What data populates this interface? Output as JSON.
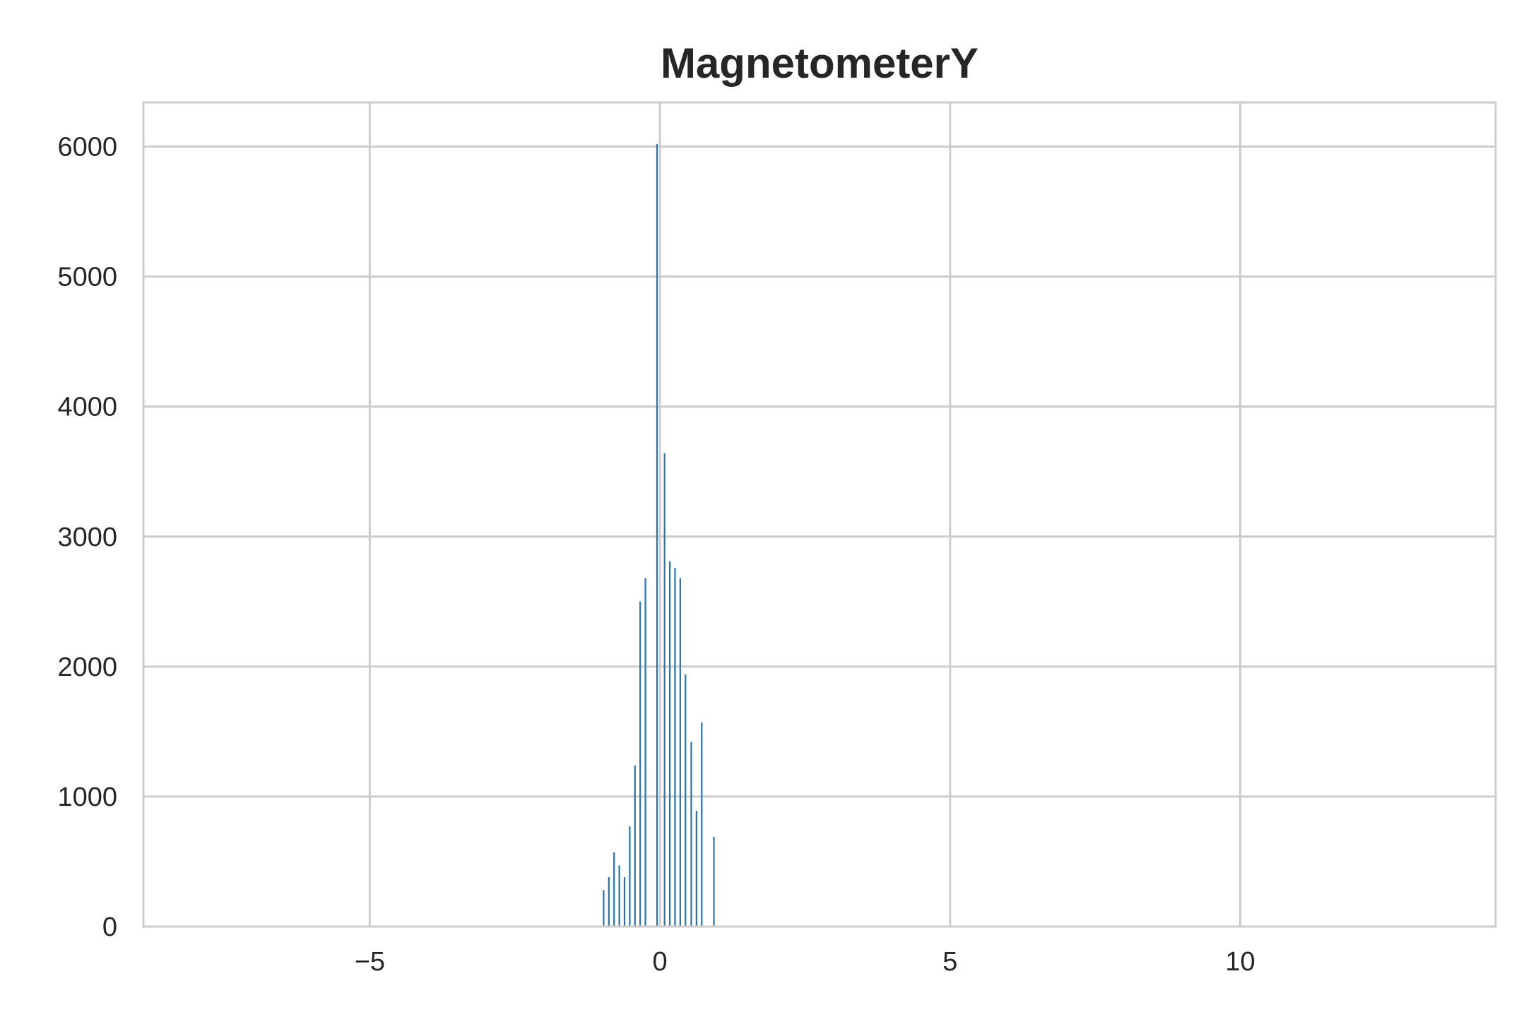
{
  "chart_data": {
    "type": "bar",
    "title": "MagnetometerY",
    "xlabel": "",
    "ylabel": "",
    "xlim": [
      -8.9,
      14.4
    ],
    "ylim": [
      0,
      6340
    ],
    "x_ticks": [
      -5,
      0,
      5,
      10
    ],
    "x_tick_labels": [
      "−5",
      "0",
      "5",
      "10"
    ],
    "y_ticks": [
      0,
      1000,
      2000,
      3000,
      4000,
      5000,
      6000
    ],
    "y_tick_labels": [
      "0",
      "1000",
      "2000",
      "3000",
      "4000",
      "5000",
      "6000"
    ],
    "grid": true,
    "bar_color": "#2774ae",
    "bin_width": 0.027,
    "bins": [
      {
        "x": -0.97,
        "count": 280
      },
      {
        "x": -0.88,
        "count": 380
      },
      {
        "x": -0.79,
        "count": 570
      },
      {
        "x": -0.7,
        "count": 470
      },
      {
        "x": -0.61,
        "count": 380
      },
      {
        "x": -0.52,
        "count": 770
      },
      {
        "x": -0.43,
        "count": 1240
      },
      {
        "x": -0.34,
        "count": 2500
      },
      {
        "x": -0.25,
        "count": 2680
      },
      {
        "x": -0.05,
        "count": 6020
      },
      {
        "x": 0.08,
        "count": 3640
      },
      {
        "x": 0.17,
        "count": 2810
      },
      {
        "x": 0.26,
        "count": 2760
      },
      {
        "x": 0.35,
        "count": 2680
      },
      {
        "x": 0.44,
        "count": 1940
      },
      {
        "x": 0.54,
        "count": 1420
      },
      {
        "x": 0.63,
        "count": 890
      },
      {
        "x": 0.72,
        "count": 1570
      },
      {
        "x": 0.93,
        "count": 690
      }
    ]
  }
}
